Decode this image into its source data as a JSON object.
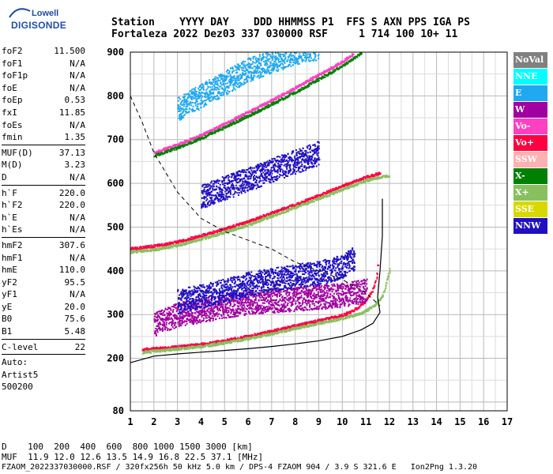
{
  "logo": {
    "line1": "Lowell",
    "line2": "DIGISONDE"
  },
  "header": {
    "row1": "Station    YYYY DAY    DDD HHMMSS P1  FFS S AXN PPS IGA PS",
    "row2": "Fortaleza 2022 Dez03 337 030000 RSF     1 714 100 10+ 11"
  },
  "params_groups": [
    [
      {
        "k": "foF2",
        "v": "11.500"
      },
      {
        "k": "foF1",
        "v": "N/A"
      },
      {
        "k": "foF1p",
        "v": "N/A"
      },
      {
        "k": "foE",
        "v": "N/A"
      },
      {
        "k": "foEp",
        "v": "0.53"
      },
      {
        "k": "fxI",
        "v": "11.85"
      },
      {
        "k": "foEs",
        "v": "N/A"
      },
      {
        "k": "fmin",
        "v": "1.35"
      }
    ],
    [
      {
        "k": "MUF(D)",
        "v": "37.13"
      },
      {
        "k": "M(D)",
        "v": "3.23"
      },
      {
        "k": "D",
        "v": "N/A"
      }
    ],
    [
      {
        "k": "h`F",
        "v": "220.0"
      },
      {
        "k": "h`F2",
        "v": "220.0"
      },
      {
        "k": "h`E",
        "v": "N/A"
      },
      {
        "k": "h`Es",
        "v": "N/A"
      }
    ],
    [
      {
        "k": "hmF2",
        "v": "307.6"
      },
      {
        "k": "hmF1",
        "v": "N/A"
      },
      {
        "k": "hmE",
        "v": "110.0"
      },
      {
        "k": "yF2",
        "v": "95.5"
      },
      {
        "k": "yF1",
        "v": "N/A"
      },
      {
        "k": "yE",
        "v": "20.0"
      },
      {
        "k": "B0",
        "v": "75.6"
      },
      {
        "k": "B1",
        "v": "5.48"
      }
    ],
    [
      {
        "k": "C-level",
        "v": "22"
      }
    ]
  ],
  "autoscaling": {
    "line1": "Auto:",
    "line2": "Artist5",
    "line3": "500200"
  },
  "legend": [
    {
      "label": "NoVal",
      "color": "#808080"
    },
    {
      "label": "NNE",
      "color": "#00ffff"
    },
    {
      "label": "E",
      "color": "#20a8f0"
    },
    {
      "label": "W",
      "color": "#a000a0"
    },
    {
      "label": "Vo-",
      "color": "#ff40c0"
    },
    {
      "label": "Vo+",
      "color": "#ff0040"
    },
    {
      "label": "SSW",
      "color": "#ffb0b0"
    },
    {
      "label": "X-",
      "color": "#008000"
    },
    {
      "label": "X+",
      "color": "#88c060"
    },
    {
      "label": "SSE",
      "color": "#d8d800"
    },
    {
      "label": "NNW",
      "color": "#2010c0"
    }
  ],
  "footer": {
    "d_row": "D    100  200  400  600  800 1000 1500 3000 [km]",
    "muf_row": "MUF  11.9 12.0 12.6 13.5 14.9 16.8 22.5 37.1 [MHz]",
    "file_row": "FZAOM_2022337030000.RSF / 320fx256h 50 kHz 5.0 km / DPS-4 FZAOM 904 / 3.9 S 321.6 E   Ion2Png 1.3.20"
  },
  "chart_data": {
    "type": "scatter",
    "xlim": [
      1,
      17
    ],
    "ylim": [
      80,
      900
    ],
    "x_ticks": [
      1,
      2,
      3,
      4,
      5,
      6,
      7,
      8,
      9,
      10,
      11,
      12,
      13,
      14,
      15,
      16,
      17
    ],
    "y_ticks": [
      80,
      200,
      300,
      400,
      500,
      600,
      700,
      800,
      900
    ],
    "grid": true,
    "x_minor_step": 0.5,
    "y_minor_step": 50,
    "traces": [
      {
        "name": "O-trace F2 (1 hop)",
        "color": "#ff0040",
        "points": [
          [
            1.5,
            222
          ],
          [
            2,
            224
          ],
          [
            3,
            228
          ],
          [
            4,
            234
          ],
          [
            5,
            242
          ],
          [
            6,
            252
          ],
          [
            7,
            264
          ],
          [
            8,
            276
          ],
          [
            9,
            288
          ],
          [
            10,
            300
          ],
          [
            10.6,
            315
          ],
          [
            11,
            335
          ],
          [
            11.3,
            360
          ],
          [
            11.45,
            390
          ],
          [
            11.5,
            420
          ]
        ]
      },
      {
        "name": "X-trace F2 (1 hop)",
        "color": "#88c060",
        "points": [
          [
            1.5,
            215
          ],
          [
            2,
            218
          ],
          [
            3,
            223
          ],
          [
            4,
            229
          ],
          [
            5,
            237
          ],
          [
            6,
            247
          ],
          [
            7,
            258
          ],
          [
            8,
            270
          ],
          [
            9,
            282
          ],
          [
            10,
            293
          ],
          [
            10.8,
            305
          ],
          [
            11.3,
            320
          ],
          [
            11.7,
            345
          ],
          [
            11.9,
            385
          ],
          [
            12,
            405
          ]
        ]
      },
      {
        "name": "O-trace F2 (2 hop)",
        "color": "#ff0040",
        "points": [
          [
            1,
            452
          ],
          [
            2,
            458
          ],
          [
            3,
            468
          ],
          [
            4,
            482
          ],
          [
            5,
            498
          ],
          [
            6,
            514
          ],
          [
            7,
            534
          ],
          [
            8,
            554
          ],
          [
            9,
            574
          ],
          [
            10,
            596
          ],
          [
            11,
            616
          ],
          [
            11.6,
            625
          ]
        ]
      },
      {
        "name": "X-trace F2 (2 hop)",
        "color": "#88c060",
        "points": [
          [
            1,
            445
          ],
          [
            2,
            450
          ],
          [
            3,
            460
          ],
          [
            4,
            474
          ],
          [
            5,
            490
          ],
          [
            6,
            507
          ],
          [
            7,
            527
          ],
          [
            8,
            547
          ],
          [
            9,
            567
          ],
          [
            10,
            588
          ],
          [
            11,
            608
          ],
          [
            12,
            620
          ]
        ]
      },
      {
        "name": "O-trace F2 (3 hop)",
        "color": "#ff40c0",
        "points": [
          [
            2,
            672
          ],
          [
            3,
            690
          ],
          [
            4,
            712
          ],
          [
            5,
            738
          ],
          [
            6,
            765
          ],
          [
            7,
            792
          ],
          [
            8,
            820
          ],
          [
            9,
            850
          ],
          [
            10,
            880
          ],
          [
            10.5,
            900
          ]
        ]
      },
      {
        "name": "X-trace F2 (3 hop)",
        "color": "#008000",
        "points": [
          [
            2,
            665
          ],
          [
            3,
            683
          ],
          [
            4,
            705
          ],
          [
            5,
            730
          ],
          [
            6,
            756
          ],
          [
            7,
            783
          ],
          [
            8,
            810
          ],
          [
            9,
            840
          ],
          [
            10,
            870
          ],
          [
            10.8,
            900
          ]
        ]
      },
      {
        "name": "Spread F (W)",
        "color": "#a000a0",
        "points": [
          [
            2,
            268
          ],
          [
            3,
            290
          ],
          [
            4,
            300
          ],
          [
            5,
            310
          ],
          [
            6,
            318
          ],
          [
            7,
            322
          ],
          [
            8,
            326
          ],
          [
            9,
            330
          ],
          [
            10,
            335
          ],
          [
            11,
            345
          ]
        ]
      },
      {
        "name": "Spread F (NNW)",
        "color": "#2010c0",
        "points": [
          [
            3,
            320
          ],
          [
            5,
            345
          ],
          [
            6,
            360
          ],
          [
            7,
            370
          ],
          [
            8,
            378
          ],
          [
            9,
            385
          ],
          [
            10,
            400
          ],
          [
            10.5,
            420
          ]
        ]
      },
      {
        "name": "Spread 2 hop (NNW)",
        "color": "#2010c0",
        "points": [
          [
            4,
            560
          ],
          [
            5,
            580
          ],
          [
            6,
            600
          ],
          [
            7,
            620
          ],
          [
            8,
            640
          ],
          [
            9,
            660
          ]
        ]
      },
      {
        "name": "Spread 3 hop (E)",
        "color": "#20a8f0",
        "points": [
          [
            3,
            760
          ],
          [
            4,
            790
          ],
          [
            5,
            820
          ],
          [
            6,
            850
          ],
          [
            7,
            870
          ],
          [
            8,
            890
          ],
          [
            9,
            900
          ]
        ]
      }
    ],
    "profile": {
      "name": "Electron density profile",
      "color": "#000000",
      "points": [
        [
          1,
          190
        ],
        [
          2,
          205
        ],
        [
          3,
          210
        ],
        [
          4,
          214
        ],
        [
          5,
          218
        ],
        [
          6,
          222
        ],
        [
          7,
          227
        ],
        [
          8,
          233
        ],
        [
          9,
          240
        ],
        [
          10,
          250
        ],
        [
          10.8,
          265
        ],
        [
          11.3,
          280
        ],
        [
          11.6,
          305
        ],
        [
          11.5,
          340
        ],
        [
          11.6,
          400
        ],
        [
          11.7,
          480
        ],
        [
          11.7,
          565
        ]
      ]
    },
    "muf_curve": {
      "name": "MUF D-curve",
      "color": "#000000",
      "points": [
        [
          1,
          800
        ],
        [
          1.5,
          740
        ],
        [
          2,
          670
        ],
        [
          3,
          580
        ],
        [
          4,
          520
        ],
        [
          5,
          490
        ],
        [
          6,
          470
        ],
        [
          7,
          450
        ],
        [
          8,
          420
        ],
        [
          9,
          400
        ],
        [
          10,
          380
        ],
        [
          11,
          350
        ],
        [
          11.6,
          320
        ]
      ]
    }
  }
}
